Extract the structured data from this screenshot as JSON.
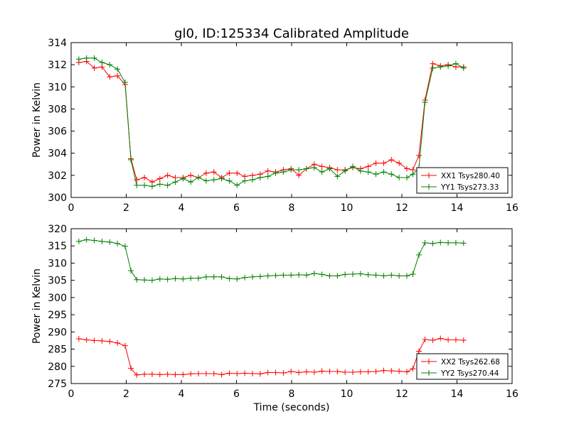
{
  "figure": {
    "title": "gl0, ID:125334 Calibrated Amplitude",
    "xlabel": "Time (seconds)"
  },
  "colors": {
    "xx": "#ff0000",
    "yy": "#008000",
    "axis": "#000000"
  },
  "chart_data": [
    {
      "type": "line",
      "title": "gl0, ID:125334 Calibrated Amplitude",
      "xlabel": "",
      "ylabel": "Power in Kelvin",
      "xlim": [
        0,
        16
      ],
      "ylim": [
        300,
        314
      ],
      "xticks": [
        0,
        2,
        4,
        6,
        8,
        10,
        12,
        14,
        16
      ],
      "yticks": [
        300,
        302,
        304,
        306,
        308,
        310,
        312,
        314
      ],
      "grid": false,
      "legend": "bottom-right",
      "x": [
        0.28,
        0.56,
        0.84,
        1.12,
        1.4,
        1.68,
        1.96,
        2.17,
        2.38,
        2.66,
        2.94,
        3.22,
        3.5,
        3.78,
        4.06,
        4.34,
        4.62,
        4.9,
        5.18,
        5.46,
        5.74,
        6.02,
        6.3,
        6.58,
        6.86,
        7.14,
        7.42,
        7.7,
        7.98,
        8.26,
        8.54,
        8.82,
        9.1,
        9.38,
        9.66,
        9.94,
        10.22,
        10.5,
        10.78,
        11.06,
        11.34,
        11.62,
        11.9,
        12.18,
        12.4,
        12.62,
        12.84,
        13.12,
        13.4,
        13.68,
        13.96,
        14.24
      ],
      "series": [
        {
          "name": "XX1 Tsys280.40",
          "color": "#ff0000",
          "values": [
            312.2,
            312.3,
            311.7,
            311.8,
            310.9,
            311.0,
            310.2,
            303.5,
            301.6,
            301.8,
            301.4,
            301.7,
            302.0,
            301.8,
            301.8,
            302.0,
            301.8,
            302.2,
            302.3,
            301.8,
            302.2,
            302.2,
            301.9,
            302.0,
            302.1,
            302.4,
            302.3,
            302.5,
            302.6,
            302.0,
            302.6,
            303.0,
            302.8,
            302.7,
            302.5,
            302.5,
            302.7,
            302.6,
            302.8,
            303.1,
            303.1,
            303.4,
            303.1,
            302.6,
            302.5,
            303.8,
            308.8,
            312.1,
            311.9,
            312.0,
            311.8,
            311.8
          ]
        },
        {
          "name": "YY1 Tsys273.33",
          "color": "#008000",
          "values": [
            312.5,
            312.6,
            312.6,
            312.2,
            312.0,
            311.6,
            310.4,
            303.4,
            301.1,
            301.1,
            301.0,
            301.2,
            301.1,
            301.4,
            301.7,
            301.4,
            301.8,
            301.5,
            301.6,
            301.7,
            301.5,
            301.1,
            301.5,
            301.6,
            301.8,
            301.9,
            302.2,
            302.3,
            302.5,
            302.5,
            302.6,
            302.7,
            302.3,
            302.6,
            301.9,
            302.4,
            302.8,
            302.4,
            302.3,
            302.1,
            302.3,
            302.1,
            301.8,
            301.8,
            302.1,
            302.7,
            308.6,
            311.7,
            311.8,
            311.9,
            312.1,
            311.7
          ]
        }
      ]
    },
    {
      "type": "line",
      "title": "",
      "xlabel": "Time (seconds)",
      "ylabel": "Power in Kelvin",
      "xlim": [
        0,
        16
      ],
      "ylim": [
        275,
        320
      ],
      "xticks": [
        0,
        2,
        4,
        6,
        8,
        10,
        12,
        14,
        16
      ],
      "yticks": [
        275,
        280,
        285,
        290,
        295,
        300,
        305,
        310,
        315,
        320
      ],
      "grid": false,
      "legend": "bottom-right",
      "x": [
        0.28,
        0.56,
        0.84,
        1.12,
        1.4,
        1.68,
        1.96,
        2.17,
        2.38,
        2.66,
        2.94,
        3.22,
        3.5,
        3.78,
        4.06,
        4.34,
        4.62,
        4.9,
        5.18,
        5.46,
        5.74,
        6.02,
        6.3,
        6.58,
        6.86,
        7.14,
        7.42,
        7.7,
        7.98,
        8.26,
        8.54,
        8.82,
        9.1,
        9.38,
        9.66,
        9.94,
        10.22,
        10.5,
        10.78,
        11.06,
        11.34,
        11.62,
        11.9,
        12.18,
        12.4,
        12.62,
        12.84,
        13.12,
        13.4,
        13.68,
        13.96,
        14.24
      ],
      "series": [
        {
          "name": "XX2 Tsys262.68",
          "color": "#ff0000",
          "values": [
            288.0,
            287.7,
            287.5,
            287.4,
            287.2,
            286.8,
            286.0,
            279.4,
            277.5,
            277.7,
            277.7,
            277.6,
            277.7,
            277.6,
            277.6,
            277.8,
            277.9,
            277.9,
            277.9,
            277.6,
            278.0,
            277.9,
            278.0,
            277.9,
            277.8,
            278.2,
            278.2,
            278.1,
            278.5,
            278.2,
            278.4,
            278.3,
            278.6,
            278.5,
            278.5,
            278.3,
            278.3,
            278.4,
            278.4,
            278.5,
            278.8,
            278.7,
            278.6,
            278.4,
            279.3,
            284.4,
            287.8,
            287.6,
            288.1,
            287.7,
            287.7,
            287.6
          ]
        },
        {
          "name": "YY2 Tsys270.44",
          "color": "#008000",
          "values": [
            316.3,
            316.8,
            316.6,
            316.3,
            316.1,
            315.7,
            314.9,
            307.8,
            305.2,
            305.1,
            305.0,
            305.4,
            305.3,
            305.5,
            305.4,
            305.6,
            305.6,
            306.0,
            306.0,
            306.0,
            305.5,
            305.4,
            305.8,
            306.0,
            306.1,
            306.3,
            306.4,
            306.5,
            306.5,
            306.6,
            306.5,
            307.0,
            306.7,
            306.3,
            306.3,
            306.7,
            306.8,
            306.9,
            306.6,
            306.5,
            306.3,
            306.5,
            306.3,
            306.3,
            306.8,
            312.4,
            315.9,
            315.7,
            316.0,
            315.9,
            315.9,
            315.8
          ]
        }
      ]
    }
  ]
}
